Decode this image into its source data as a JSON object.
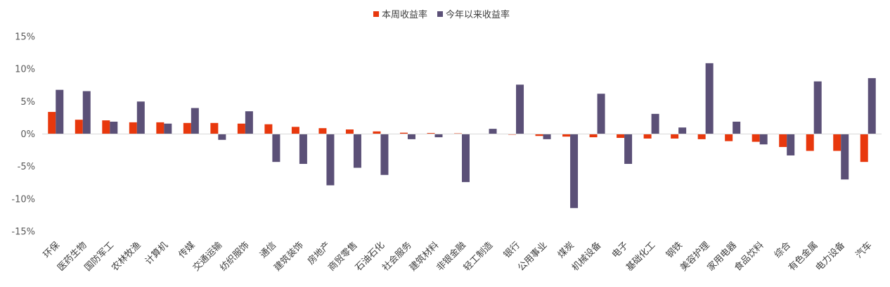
{
  "chart_data": {
    "type": "bar",
    "legend_position": "top-center",
    "grid": false,
    "ylim": [
      -15,
      15
    ],
    "yticks": [
      15,
      10,
      5,
      0,
      -5,
      -10,
      -15
    ],
    "ytick_labels": [
      "15%",
      "10%",
      "5%",
      "0%",
      "-5%",
      "-10%",
      "-15%"
    ],
    "categories": [
      "环保",
      "医药生物",
      "国防军工",
      "农林牧渔",
      "计算机",
      "传媒",
      "交通运输",
      "纺织服饰",
      "通信",
      "建筑装饰",
      "房地产",
      "商贸零售",
      "石油石化",
      "社会服务",
      "建筑材料",
      "非银金融",
      "轻工制造",
      "银行",
      "公用事业",
      "煤炭",
      "机械设备",
      "电子",
      "基础化工",
      "钢铁",
      "美容护理",
      "家用电器",
      "食品饮料",
      "综合",
      "有色金属",
      "电力设备",
      "汽车"
    ],
    "series": [
      {
        "name": "本周收益率",
        "color": "#e8380d",
        "values": [
          3.4,
          2.2,
          2.1,
          1.8,
          1.8,
          1.7,
          1.7,
          1.6,
          1.5,
          1.1,
          0.9,
          0.7,
          0.4,
          0.2,
          0.15,
          0.1,
          0.05,
          -0.1,
          -0.3,
          -0.4,
          -0.5,
          -0.6,
          -0.7,
          -0.7,
          -0.8,
          -1.1,
          -1.2,
          -2.0,
          -2.6,
          -2.6,
          -4.3
        ]
      },
      {
        "name": "今年以来收益率",
        "color": "#5b5077",
        "values": [
          6.8,
          6.6,
          1.9,
          5.0,
          1.6,
          4.0,
          -0.9,
          3.5,
          -4.3,
          -4.6,
          -7.9,
          -5.2,
          -6.3,
          -0.8,
          -0.5,
          -7.4,
          0.8,
          7.6,
          -0.8,
          -11.4,
          6.2,
          -4.6,
          3.1,
          1.0,
          10.9,
          1.9,
          -1.6,
          -3.3,
          8.1,
          -7.0,
          8.6
        ]
      }
    ]
  }
}
